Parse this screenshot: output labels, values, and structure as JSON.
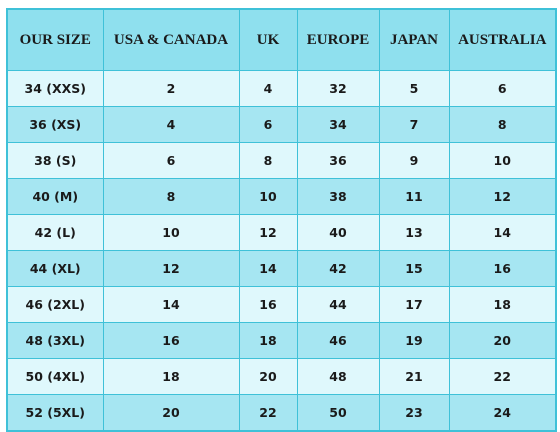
{
  "table": {
    "headers": [
      "OUR SIZE",
      "USA & CANADA",
      "UK",
      "EUROPE",
      "JAPAN",
      "AUSTRALIA"
    ],
    "rows": [
      [
        "34 (XXS)",
        "2",
        "4",
        "32",
        "5",
        "6"
      ],
      [
        "36 (XS)",
        "4",
        "6",
        "34",
        "7",
        "8"
      ],
      [
        "38 (S)",
        "6",
        "8",
        "36",
        "9",
        "10"
      ],
      [
        "40 (M)",
        "8",
        "10",
        "38",
        "11",
        "12"
      ],
      [
        "42 (L)",
        "10",
        "12",
        "40",
        "13",
        "14"
      ],
      [
        "44 (XL)",
        "12",
        "14",
        "42",
        "15",
        "16"
      ],
      [
        "46 (2XL)",
        "14",
        "16",
        "44",
        "17",
        "18"
      ],
      [
        "48 (3XL)",
        "16",
        "18",
        "46",
        "19",
        "20"
      ],
      [
        "50 (4XL)",
        "18",
        "20",
        "48",
        "21",
        "22"
      ],
      [
        "52 (5XL)",
        "20",
        "22",
        "50",
        "23",
        "24"
      ]
    ]
  },
  "colors": {
    "border": "#3fc1d8",
    "header_bg": "#8fe0ee",
    "row_light": "#dff8fc",
    "row_dark": "#a6e6f2"
  }
}
